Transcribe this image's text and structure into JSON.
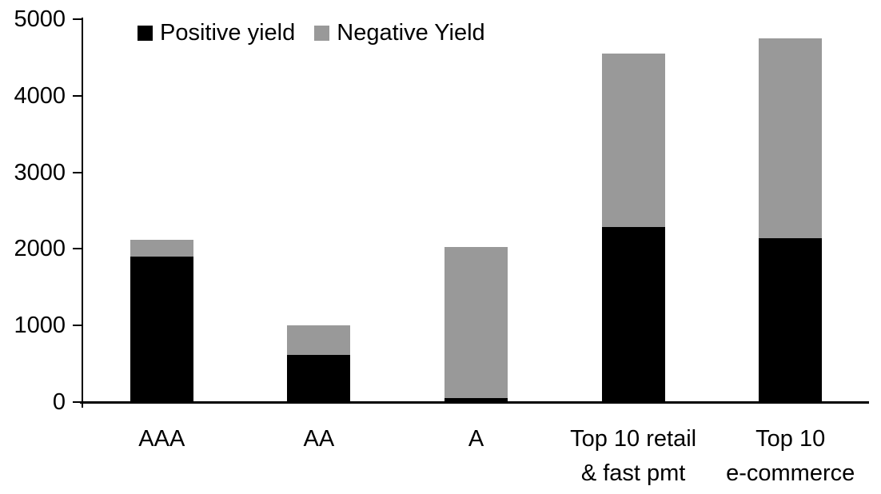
{
  "chart_data": {
    "type": "bar",
    "stacked": true,
    "title": "",
    "xlabel": "",
    "ylabel": "",
    "categories": [
      "AAA",
      "AA",
      "A",
      "Top 10 retail & fast pmt",
      "Top 10 e-commerce"
    ],
    "category_label_lines": [
      [
        "AAA"
      ],
      [
        "AA"
      ],
      [
        "A"
      ],
      [
        "Top 10 retail",
        "& fast pmt"
      ],
      [
        "Top 10",
        "e-commerce"
      ]
    ],
    "series": [
      {
        "name": "Positive yield",
        "color": "#000000",
        "values": [
          1900,
          620,
          50,
          2290,
          2140
        ]
      },
      {
        "name": "Negative Yield",
        "color": "#999999",
        "values": [
          220,
          380,
          1980,
          2260,
          2610
        ]
      }
    ],
    "totals": [
      2120,
      1000,
      2030,
      4550,
      4750
    ],
    "ylim": [
      0,
      5000
    ],
    "y_ticks": [
      0,
      1000,
      2000,
      3000,
      4000,
      5000
    ],
    "grid": false,
    "legend_position": "top-left",
    "axis_color": "#000000",
    "background_color": "#ffffff"
  }
}
